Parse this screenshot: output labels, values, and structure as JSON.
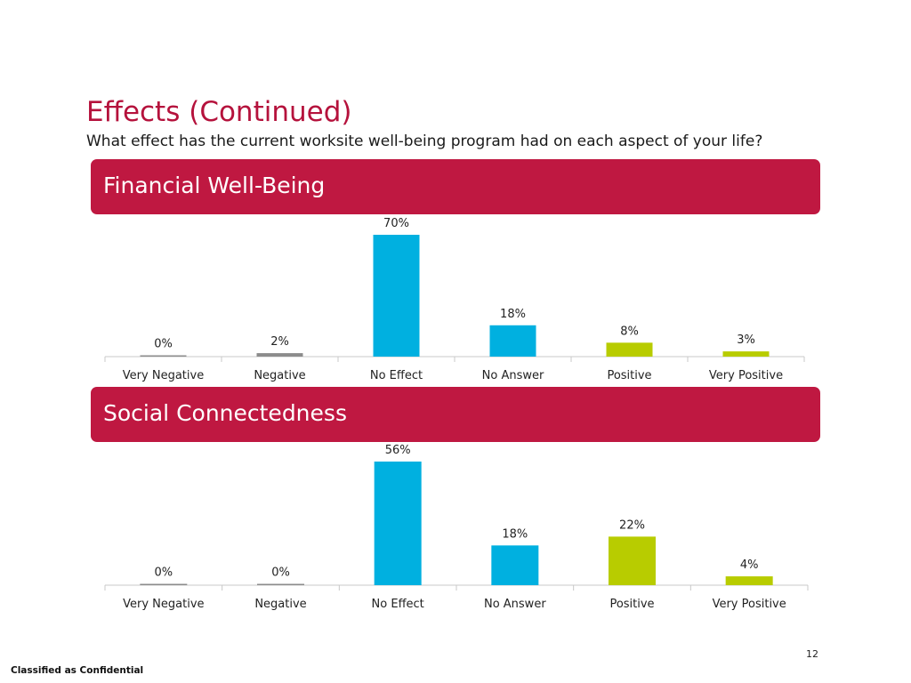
{
  "slide": {
    "title": "Effects (Continued)",
    "subtitle": "What effect has the current worksite well-being program had on each aspect of your life?",
    "page_number": "12",
    "footer": "Classified as Confidential"
  },
  "colors": {
    "header_bg": "#bf1841",
    "title": "#b5123c",
    "negative": "#8c8c8c",
    "neutral": "#00b0e0",
    "positive": "#b8cc00"
  },
  "chart_data": [
    {
      "type": "bar",
      "title": "Financial Well-Being",
      "categories": [
        "Very Negative",
        "Negative",
        "No Effect",
        "No Answer",
        "Positive",
        "Very Positive"
      ],
      "values": [
        0,
        2,
        70,
        18,
        8,
        3
      ],
      "data_labels": [
        "0%",
        "2%",
        "70%",
        "18%",
        "8%",
        "3%"
      ],
      "bar_colors": [
        "#8c8c8c",
        "#8c8c8c",
        "#00b0e0",
        "#00b0e0",
        "#b8cc00",
        "#b8cc00"
      ],
      "unit": "%",
      "ylim": [
        0,
        70
      ],
      "grid": false,
      "legend": "none"
    },
    {
      "type": "bar",
      "title": "Social Connectedness",
      "categories": [
        "Very Negative",
        "Negative",
        "No Effect",
        "No Answer",
        "Positive",
        "Very Positive"
      ],
      "values": [
        0,
        0,
        56,
        18,
        22,
        4
      ],
      "data_labels": [
        "0%",
        "0%",
        "56%",
        "18%",
        "22%",
        "4%"
      ],
      "bar_colors": [
        "#8c8c8c",
        "#8c8c8c",
        "#00b0e0",
        "#00b0e0",
        "#b8cc00",
        "#b8cc00"
      ],
      "unit": "%",
      "ylim": [
        0,
        56
      ],
      "grid": false,
      "legend": "none"
    }
  ]
}
